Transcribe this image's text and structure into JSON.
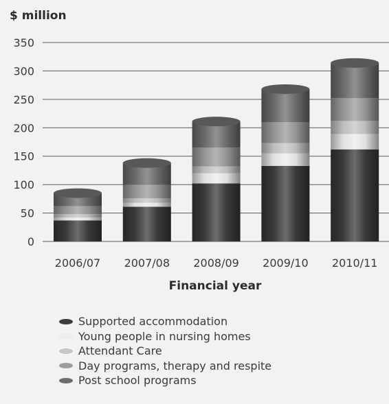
{
  "chart_data": {
    "type": "bar",
    "stacked": true,
    "categories": [
      "2006/07",
      "2007/08",
      "2008/09",
      "2009/10",
      "2010/11"
    ],
    "series": [
      {
        "name": "Supported accommodation",
        "values": [
          37,
          61,
          102,
          133,
          162
        ],
        "color": "#3c3c3c"
      },
      {
        "name": "Young people in nursing homes",
        "values": [
          5,
          7,
          18,
          22,
          27
        ],
        "color": "#ececec"
      },
      {
        "name": "Attendant Care",
        "values": [
          6,
          8,
          12,
          18,
          23
        ],
        "color": "#c6c6c6"
      },
      {
        "name": "Day programs, therapy and respite",
        "values": [
          14,
          24,
          33,
          37,
          40
        ],
        "color": "#9b9b9b"
      },
      {
        "name": "Post school programs",
        "values": [
          23,
          38,
          46,
          58,
          62
        ],
        "color": "#6e6e6e"
      }
    ],
    "ylabel": "$ million",
    "xlabel": "Financial year",
    "ylim": [
      0,
      350
    ],
    "yticks": [
      0,
      50,
      100,
      150,
      200,
      250,
      300,
      350
    ],
    "grid": true,
    "legend_position": "bottom"
  }
}
